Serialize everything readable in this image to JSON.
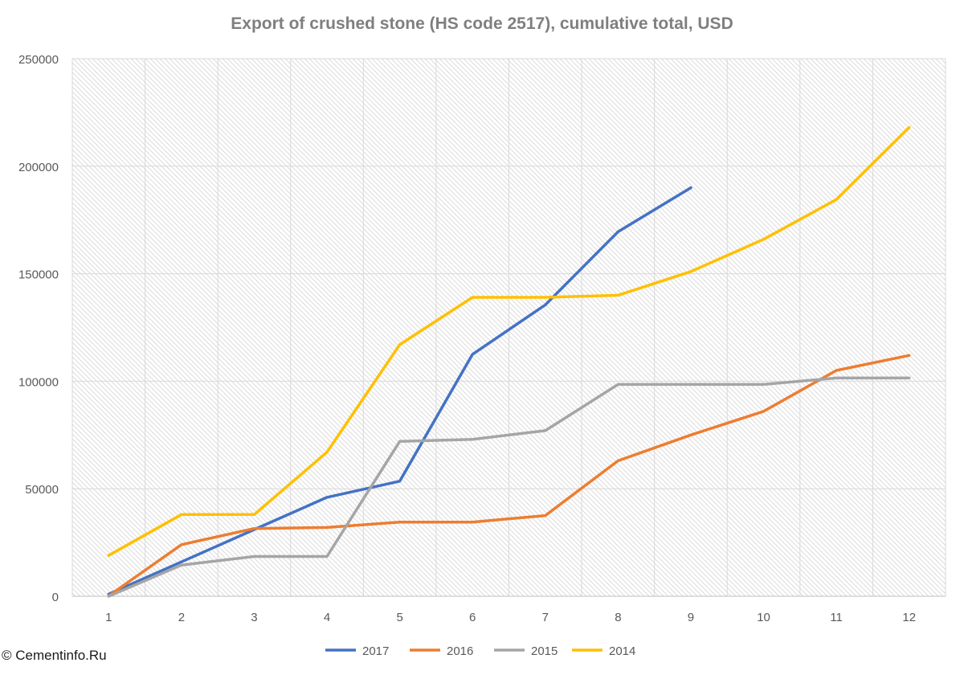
{
  "chart_data": {
    "type": "line",
    "title": "Export of crushed stone (HS code 2517), cumulative total, USD",
    "xlabel": "",
    "ylabel": "",
    "x": [
      1,
      2,
      3,
      4,
      5,
      6,
      7,
      8,
      9,
      10,
      11,
      12
    ],
    "ylim": [
      0,
      250000
    ],
    "yticks": [
      0,
      50000,
      100000,
      150000,
      200000,
      250000
    ],
    "ytick_labels": [
      "0",
      "50000",
      "100000",
      "150000",
      "200000",
      "250000"
    ],
    "grid": true,
    "legend_position": "bottom",
    "series": [
      {
        "name": "2017",
        "color": "#4472c4",
        "values": [
          1000,
          16000,
          31000,
          46000,
          53500,
          112500,
          135500,
          169500,
          190000,
          null,
          null,
          null
        ]
      },
      {
        "name": "2016",
        "color": "#ed7d31",
        "values": [
          200,
          24000,
          31500,
          32000,
          34500,
          34500,
          37500,
          63000,
          75000,
          86000,
          105000,
          112000
        ]
      },
      {
        "name": "2015",
        "color": "#a5a5a5",
        "values": [
          0,
          14500,
          18500,
          18500,
          72000,
          73000,
          77000,
          98500,
          98500,
          98500,
          101500,
          101500
        ]
      },
      {
        "name": "2014",
        "color": "#ffc000",
        "values": [
          19000,
          38000,
          38000,
          67000,
          117000,
          139000,
          139000,
          140000,
          151000,
          166000,
          184500,
          218000
        ]
      }
    ]
  },
  "watermark": "© Cementinfo.Ru"
}
